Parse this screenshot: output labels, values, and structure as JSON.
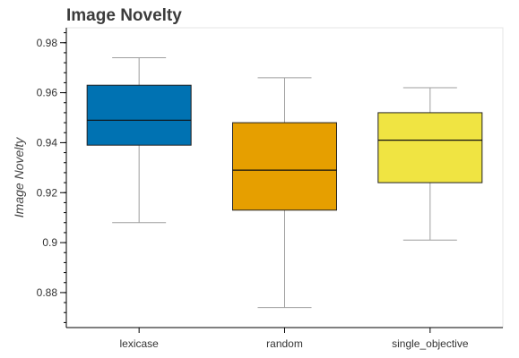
{
  "chart_data": {
    "type": "box",
    "title": "Image Novelty",
    "xlabel": "",
    "ylabel": "Image Novelty",
    "ylim": [
      0.866,
      0.986
    ],
    "yticks": [
      0.88,
      0.9,
      0.92,
      0.94,
      0.96,
      0.98
    ],
    "ytick_labels": [
      "0.88",
      "0.9",
      "0.92",
      "0.94",
      "0.96",
      "0.98"
    ],
    "categories": [
      "lexicase",
      "random",
      "single_objective"
    ],
    "boxes": [
      {
        "category": "lexicase",
        "whisker_low": 0.908,
        "q1": 0.939,
        "median": 0.949,
        "q3": 0.963,
        "whisker_high": 0.974,
        "color": "#0072b2"
      },
      {
        "category": "random",
        "whisker_low": 0.874,
        "q1": 0.913,
        "median": 0.929,
        "q3": 0.948,
        "whisker_high": 0.966,
        "color": "#e69f00"
      },
      {
        "category": "single_objective",
        "whisker_low": 0.901,
        "q1": 0.924,
        "median": 0.941,
        "q3": 0.952,
        "whisker_high": 0.962,
        "color": "#f0e442"
      }
    ],
    "grid": false,
    "legend": "none"
  }
}
